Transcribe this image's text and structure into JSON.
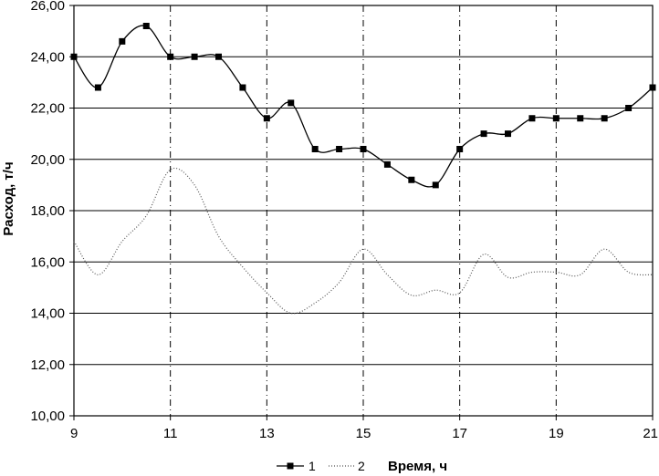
{
  "chart_data": {
    "type": "line",
    "title": "",
    "xlabel": "Время, ч",
    "ylabel": "Расход, т/ч",
    "xlim": [
      9,
      21
    ],
    "ylim": [
      10,
      26
    ],
    "x_ticks": [
      9,
      11,
      13,
      15,
      17,
      19,
      21
    ],
    "x_tick_labels": [
      "9",
      "11",
      "13",
      "15",
      "17",
      "19",
      "21"
    ],
    "y_ticks": [
      10,
      12,
      14,
      16,
      18,
      20,
      22,
      24,
      26
    ],
    "y_tick_labels": [
      "10,00",
      "12,00",
      "14,00",
      "16,00",
      "18,00",
      "20,00",
      "22,00",
      "24,00",
      "26,00"
    ],
    "grid": {
      "horizontal": true,
      "vertical": true
    },
    "legend": {
      "placement": "bottom-left"
    },
    "series": [
      {
        "name": "1",
        "style": "solid-square-markers",
        "color": "#000000",
        "x": [
          9,
          9.5,
          10,
          10.5,
          11,
          11.5,
          12,
          12.5,
          13,
          13.5,
          14,
          14.5,
          15,
          15.5,
          16,
          16.5,
          17,
          17.5,
          18,
          18.5,
          19,
          19.5,
          20,
          20.5,
          21
        ],
        "y": [
          24.0,
          22.8,
          24.6,
          25.2,
          24.0,
          24.0,
          24.0,
          22.8,
          21.6,
          22.2,
          20.4,
          20.4,
          20.4,
          19.8,
          19.2,
          19.0,
          20.4,
          21.0,
          21.0,
          21.6,
          21.6,
          21.6,
          21.6,
          22.0,
          22.8
        ]
      },
      {
        "name": "2",
        "style": "dotted",
        "color": "#555555",
        "x": [
          9,
          9.5,
          10,
          10.5,
          11,
          11.5,
          12,
          12.5,
          13,
          13.5,
          14,
          14.5,
          15,
          15.5,
          16,
          16.5,
          17,
          17.5,
          18,
          18.5,
          19,
          19.5,
          20,
          20.5,
          21
        ],
        "y": [
          16.8,
          15.5,
          16.8,
          17.8,
          19.6,
          19.0,
          17.0,
          15.8,
          14.8,
          14.0,
          14.4,
          15.2,
          16.5,
          15.5,
          14.7,
          14.9,
          14.8,
          16.3,
          15.4,
          15.6,
          15.6,
          15.5,
          16.5,
          15.6,
          15.5
        ]
      }
    ]
  }
}
